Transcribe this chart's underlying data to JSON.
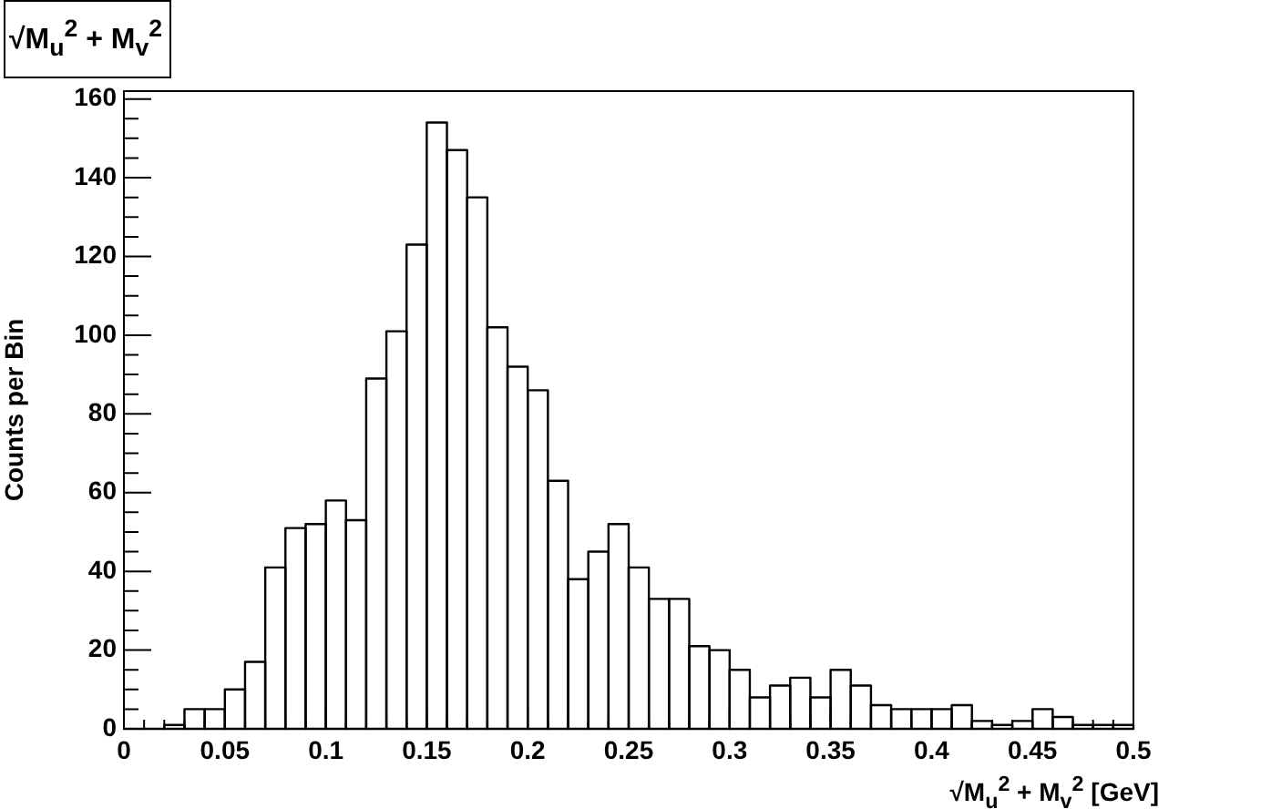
{
  "chart_data": {
    "type": "histogram",
    "title": "√M$_{u}$$^{2}$ + M$_{v}$$^{2}$",
    "xlabel": "√M$_{u}$$^{2}$ + M$_{v}$$^{2}$ [GeV]",
    "ylabel": "Counts per Bin",
    "bins": [
      0,
      0.01,
      0.02,
      0.03,
      0.04,
      0.05,
      0.06,
      0.07,
      0.08,
      0.09,
      0.1,
      0.11,
      0.12,
      0.13,
      0.14,
      0.15,
      0.16,
      0.17,
      0.18,
      0.19,
      0.2,
      0.21,
      0.22,
      0.23,
      0.24,
      0.25,
      0.26,
      0.27,
      0.28,
      0.29,
      0.3,
      0.31,
      0.32,
      0.33,
      0.34,
      0.35,
      0.36,
      0.37,
      0.38,
      0.39,
      0.4,
      0.41,
      0.42,
      0.43,
      0.44,
      0.45,
      0.46,
      0.47,
      0.48,
      0.49,
      0.5
    ],
    "values": [
      0,
      0,
      1,
      5,
      5,
      10,
      17,
      41,
      51,
      52,
      58,
      53,
      89,
      101,
      123,
      154,
      147,
      135,
      102,
      92,
      86,
      63,
      38,
      45,
      52,
      41,
      33,
      33,
      21,
      20,
      15,
      8,
      11,
      13,
      8,
      15,
      11,
      6,
      5,
      5,
      5,
      6,
      2,
      1,
      2,
      5,
      3,
      1,
      1,
      1
    ],
    "color": "#000000",
    "xlim": [
      0,
      0.5
    ],
    "xticks": [
      0,
      {
        "value": 0.01,
        "label": null
      },
      {
        "value": 0.02,
        "label": null
      },
      {
        "value": 0.03,
        "label": null
      },
      {
        "value": 0.04,
        "label": null
      },
      0.05,
      {
        "value": 0.06,
        "label": null
      },
      {
        "value": 0.07,
        "label": null
      },
      {
        "value": 0.08,
        "label": null
      },
      {
        "value": 0.09,
        "label": null
      },
      0.1,
      {
        "value": 0.11,
        "label": null
      },
      {
        "value": 0.12,
        "label": null
      },
      {
        "value": 0.13,
        "label": null
      },
      {
        "value": 0.14,
        "label": null
      },
      0.15,
      {
        "value": 0.16,
        "label": null
      },
      {
        "value": 0.17,
        "label": null
      },
      {
        "value": 0.18,
        "label": null
      },
      {
        "value": 0.19,
        "label": null
      },
      0.2,
      {
        "value": 0.21,
        "label": null
      },
      {
        "value": 0.22,
        "label": null
      },
      {
        "value": 0.23,
        "label": null
      },
      {
        "value": 0.24,
        "label": null
      },
      0.25,
      {
        "value": 0.26,
        "label": null
      },
      {
        "value": 0.27,
        "label": null
      },
      {
        "value": 0.28,
        "label": null
      },
      {
        "value": 0.29,
        "label": null
      },
      0.3,
      {
        "value": 0.31,
        "label": null
      },
      {
        "value": 0.32,
        "label": null
      },
      {
        "value": 0.33,
        "label": null
      },
      {
        "value": 0.34,
        "label": null
      },
      0.35,
      {
        "value": 0.36,
        "label": null
      },
      {
        "value": 0.37,
        "label": null
      },
      {
        "value": 0.38,
        "label": null
      },
      {
        "value": 0.39,
        "label": null
      },
      0.4,
      {
        "value": 0.41,
        "label": null
      },
      {
        "value": 0.42,
        "label": null
      },
      {
        "value": 0.43,
        "label": null
      },
      {
        "value": 0.44,
        "label": null
      },
      0.45,
      {
        "value": 0.46,
        "label": null
      },
      {
        "value": 0.47,
        "label": null
      },
      {
        "value": 0.48,
        "label": null
      },
      {
        "value": 0.49,
        "label": null
      },
      0.5
    ],
    "ylim": [
      0,
      162
    ],
    "yticks": [
      0,
      {
        "value": 5,
        "label": null
      },
      {
        "value": 10,
        "label": null
      },
      {
        "value": 15,
        "label": null
      },
      20,
      {
        "value": 25,
        "label": null
      },
      {
        "value": 30,
        "label": null
      },
      {
        "value": 35,
        "label": null
      },
      40,
      {
        "value": 45,
        "label": null
      },
      {
        "value": 50,
        "label": null
      },
      {
        "value": 55,
        "label": null
      },
      60,
      {
        "value": 65,
        "label": null
      },
      {
        "value": 70,
        "label": null
      },
      {
        "value": 75,
        "label": null
      },
      80,
      {
        "value": 85,
        "label": null
      },
      {
        "value": 90,
        "label": null
      },
      {
        "value": 95,
        "label": null
      },
      100,
      {
        "value": 105,
        "label": null
      },
      {
        "value": 110,
        "label": null
      },
      {
        "value": 115,
        "label": null
      },
      120,
      {
        "value": 125,
        "label": null
      },
      {
        "value": 130,
        "label": null
      },
      {
        "value": 135,
        "label": null
      },
      140,
      {
        "value": 145,
        "label": null
      },
      {
        "value": 150,
        "label": null
      },
      {
        "value": 155,
        "label": null
      },
      160
    ],
    "grid": false,
    "legend": false
  }
}
